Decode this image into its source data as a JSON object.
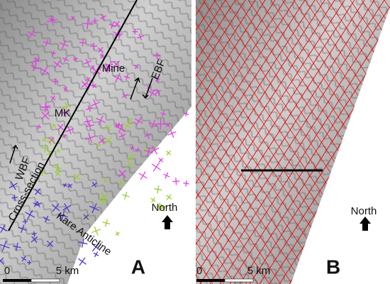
{
  "panels": [
    {
      "label": "A",
      "annotations": [
        "Mine",
        "EBF",
        "MK",
        "WBF",
        "Cross-section",
        "Kare Anticline"
      ],
      "north": "North",
      "scale": {
        "start": "0",
        "end": "5 km"
      }
    },
    {
      "label": "B",
      "north": "North",
      "scale": {
        "start": "0",
        "end": "5 km"
      }
    }
  ]
}
